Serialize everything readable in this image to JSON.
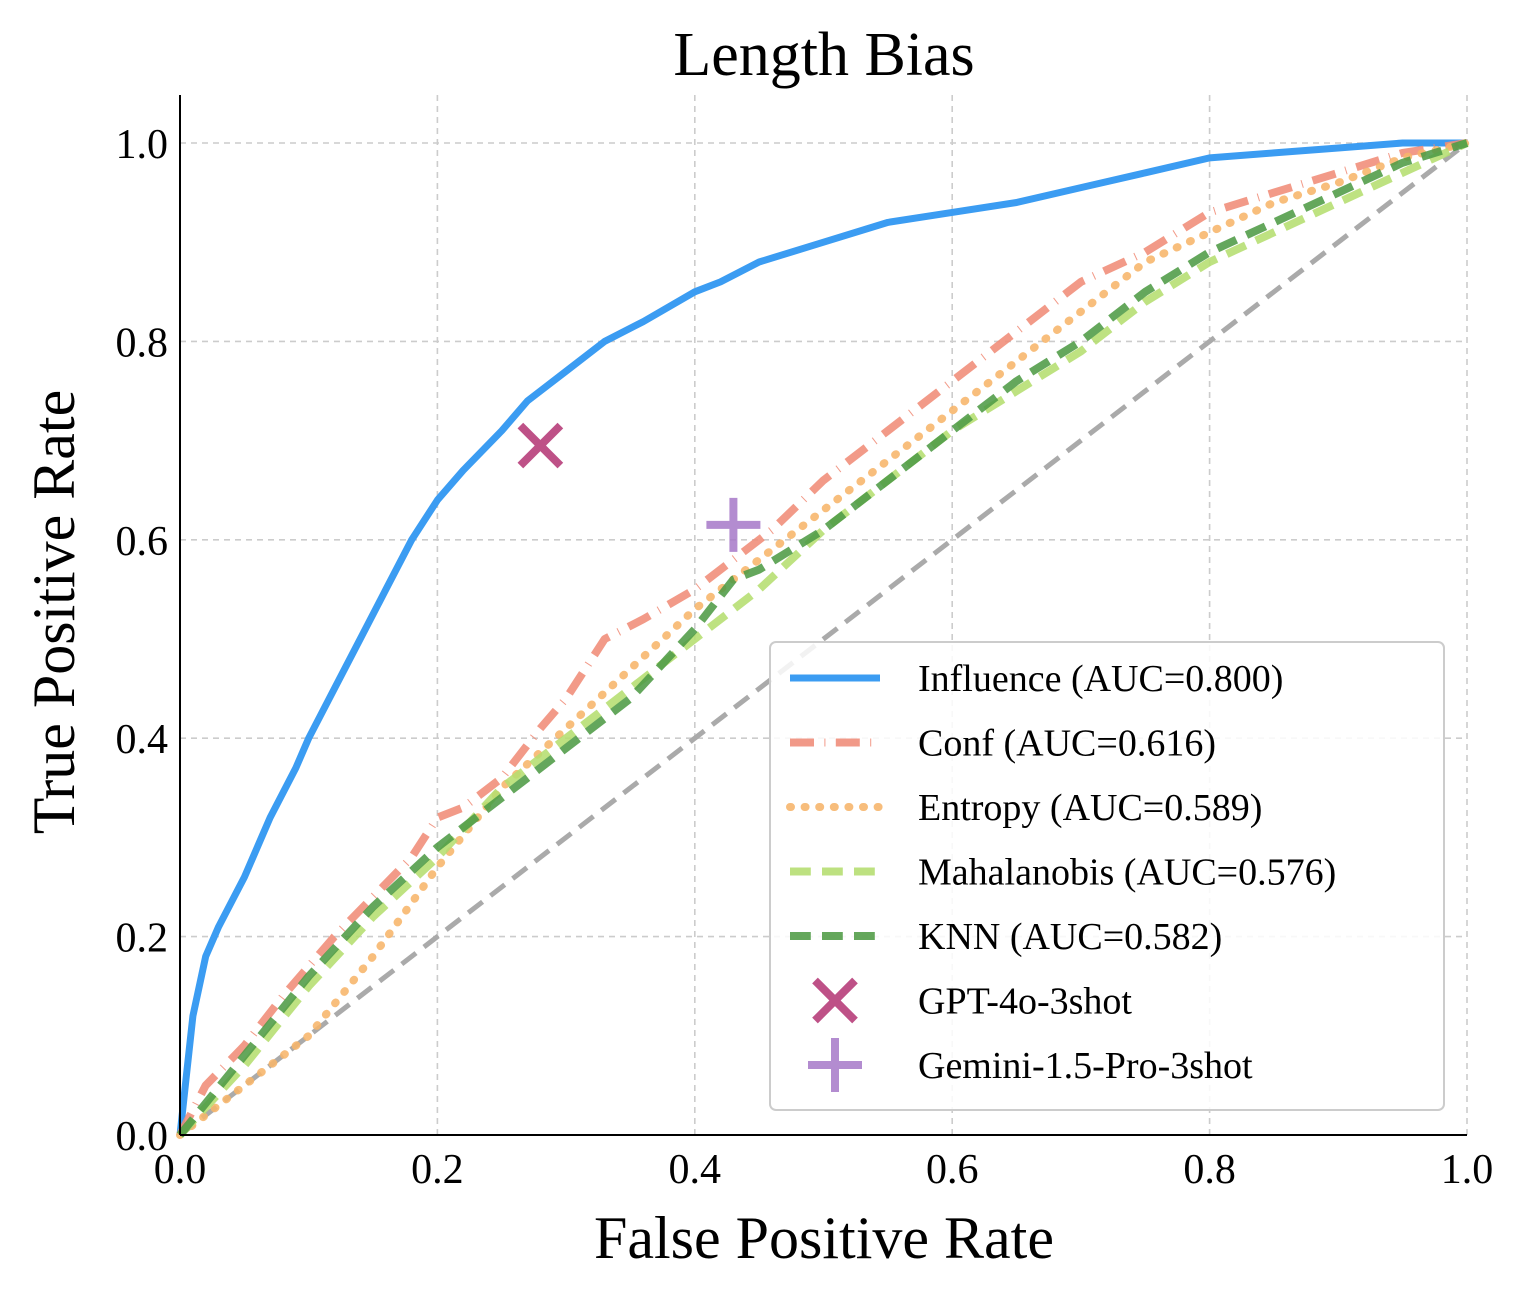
{
  "chart_data": {
    "type": "line",
    "title": "Length Bias",
    "xlabel": "False Positive Rate",
    "ylabel": "True Positive Rate",
    "xlim": [
      0,
      1
    ],
    "ylim": [
      0,
      1.04
    ],
    "xticks": [
      "0.0",
      "0.2",
      "0.4",
      "0.6",
      "0.8",
      "1.0"
    ],
    "yticks": [
      "0.0",
      "0.2",
      "0.4",
      "0.6",
      "0.8",
      "1.0"
    ],
    "grid": true,
    "legend_position": "lower-right",
    "series": [
      {
        "name": "Influence (AUC=0.800)",
        "color": "#3b9cf2",
        "style": "solid",
        "x": [
          0,
          0.005,
          0.01,
          0.02,
          0.03,
          0.05,
          0.07,
          0.09,
          0.1,
          0.12,
          0.14,
          0.16,
          0.18,
          0.2,
          0.22,
          0.25,
          0.27,
          0.3,
          0.33,
          0.36,
          0.4,
          0.42,
          0.45,
          0.5,
          0.55,
          0.6,
          0.65,
          0.7,
          0.75,
          0.8,
          0.85,
          0.9,
          0.95,
          1.0
        ],
        "y": [
          0,
          0.06,
          0.12,
          0.18,
          0.21,
          0.26,
          0.32,
          0.37,
          0.4,
          0.45,
          0.5,
          0.55,
          0.6,
          0.64,
          0.67,
          0.71,
          0.74,
          0.77,
          0.8,
          0.82,
          0.85,
          0.86,
          0.88,
          0.9,
          0.92,
          0.93,
          0.94,
          0.955,
          0.97,
          0.985,
          0.99,
          0.995,
          1.0,
          1.0
        ]
      },
      {
        "name": "Conf (AUC=0.616)",
        "color": "#f08c78",
        "style": "dashdot",
        "x": [
          0,
          0.02,
          0.05,
          0.08,
          0.12,
          0.15,
          0.18,
          0.2,
          0.22,
          0.25,
          0.28,
          0.3,
          0.33,
          0.36,
          0.4,
          0.43,
          0.46,
          0.5,
          0.55,
          0.6,
          0.65,
          0.7,
          0.75,
          0.8,
          0.85,
          0.9,
          0.95,
          1.0
        ],
        "y": [
          0,
          0.05,
          0.09,
          0.14,
          0.2,
          0.24,
          0.28,
          0.32,
          0.33,
          0.36,
          0.41,
          0.44,
          0.5,
          0.52,
          0.55,
          0.58,
          0.61,
          0.66,
          0.71,
          0.76,
          0.81,
          0.86,
          0.89,
          0.93,
          0.95,
          0.97,
          0.99,
          1.0
        ]
      },
      {
        "name": "Entropy (AUC=0.589)",
        "color": "#f7b56a",
        "style": "dotted",
        "x": [
          0,
          0.02,
          0.05,
          0.1,
          0.15,
          0.2,
          0.25,
          0.3,
          0.35,
          0.4,
          0.45,
          0.5,
          0.55,
          0.6,
          0.65,
          0.7,
          0.75,
          0.8,
          0.85,
          0.9,
          0.95,
          1.0
        ],
        "y": [
          0,
          0.02,
          0.05,
          0.1,
          0.18,
          0.27,
          0.35,
          0.41,
          0.47,
          0.53,
          0.58,
          0.63,
          0.68,
          0.73,
          0.78,
          0.83,
          0.88,
          0.91,
          0.94,
          0.96,
          0.985,
          1.0
        ]
      },
      {
        "name": "Mahalanobis (AUC=0.576)",
        "color": "#b5de6f",
        "style": "dashed",
        "x": [
          0,
          0.05,
          0.1,
          0.15,
          0.2,
          0.25,
          0.3,
          0.35,
          0.4,
          0.45,
          0.5,
          0.55,
          0.6,
          0.65,
          0.7,
          0.75,
          0.8,
          0.85,
          0.9,
          0.95,
          1.0
        ],
        "y": [
          0,
          0.07,
          0.15,
          0.22,
          0.28,
          0.35,
          0.4,
          0.45,
          0.5,
          0.55,
          0.61,
          0.66,
          0.71,
          0.75,
          0.79,
          0.84,
          0.88,
          0.91,
          0.94,
          0.97,
          1.0
        ]
      },
      {
        "name": "KNN (AUC=0.582)",
        "color": "#4f9b45",
        "style": "dashed",
        "x": [
          0,
          0.05,
          0.1,
          0.15,
          0.2,
          0.25,
          0.3,
          0.35,
          0.4,
          0.43,
          0.45,
          0.5,
          0.55,
          0.6,
          0.65,
          0.7,
          0.75,
          0.8,
          0.85,
          0.9,
          0.95,
          1.0
        ],
        "y": [
          0,
          0.08,
          0.16,
          0.23,
          0.29,
          0.34,
          0.39,
          0.44,
          0.51,
          0.56,
          0.57,
          0.61,
          0.66,
          0.71,
          0.76,
          0.8,
          0.85,
          0.89,
          0.92,
          0.95,
          0.98,
          1.0
        ]
      }
    ],
    "reference_line": {
      "x": [
        0,
        1
      ],
      "y": [
        0,
        1
      ],
      "color": "#aaaaaa",
      "style": "dashed"
    },
    "points": [
      {
        "name": "GPT-4o-3shot",
        "x": 0.28,
        "y": 0.695,
        "marker": "x",
        "color": "#b33373"
      },
      {
        "name": "Gemini-1.5-Pro-3shot",
        "x": 0.43,
        "y": 0.615,
        "marker": "+",
        "color": "#a678c8"
      }
    ]
  }
}
